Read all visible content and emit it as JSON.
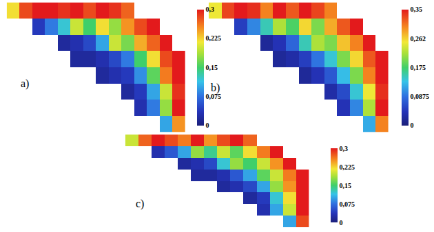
{
  "chart_data": [
    {
      "type": "heatmap",
      "title": "a)",
      "tick_labels": false,
      "colorbar_range": [
        0,
        0.3
      ],
      "colorbar_ticks": [
        0,
        {
          "value": 0.075,
          "label": "0,075"
        },
        {
          "value": 0.15,
          "label": "0,15"
        },
        {
          "value": 0.225,
          "label": "0,225"
        },
        {
          "value": 0.3,
          "label": "0,3"
        }
      ],
      "cells": [
        [
          0.22,
          0.28,
          0.3,
          0.3,
          0.29,
          0.3,
          0.28,
          0.3,
          0.29,
          0.27,
          null,
          null,
          null,
          null
        ],
        [
          null,
          null,
          0.04,
          0.08,
          0.12,
          0.2,
          0.15,
          0.22,
          0.18,
          0.25,
          0.28,
          0.3,
          null,
          null
        ],
        [
          null,
          null,
          null,
          null,
          0.02,
          0.03,
          0.05,
          0.1,
          0.2,
          0.17,
          0.24,
          0.27,
          0.3,
          null
        ],
        [
          null,
          null,
          null,
          null,
          null,
          0.02,
          0.02,
          0.03,
          0.05,
          0.08,
          0.15,
          0.22,
          0.28,
          0.3
        ],
        [
          null,
          null,
          null,
          null,
          null,
          null,
          null,
          0.02,
          0.03,
          0.04,
          0.09,
          0.16,
          0.26,
          0.3
        ],
        [
          null,
          null,
          null,
          null,
          null,
          null,
          null,
          null,
          null,
          0.02,
          0.04,
          0.1,
          0.2,
          0.29
        ],
        [
          null,
          null,
          null,
          null,
          null,
          null,
          null,
          null,
          null,
          null,
          0.03,
          0.08,
          0.18,
          0.3
        ],
        [
          null,
          null,
          null,
          null,
          null,
          null,
          null,
          null,
          null,
          null,
          null,
          null,
          0.1,
          0.25
        ]
      ]
    },
    {
      "type": "heatmap",
      "title": "b)",
      "tick_labels": false,
      "colorbar_range": [
        0,
        0.35
      ],
      "colorbar_ticks": [
        0,
        {
          "value": 0.0875,
          "label": "0,0875"
        },
        {
          "value": 0.175,
          "label": "0,175"
        },
        {
          "value": 0.262,
          "label": "0,262"
        },
        {
          "value": 0.35,
          "label": "0,35"
        }
      ],
      "cells": [
        [
          0.25,
          0.33,
          0.35,
          0.34,
          0.3,
          0.35,
          0.32,
          0.35,
          0.33,
          0.3,
          null,
          null,
          null,
          null
        ],
        [
          null,
          null,
          0.05,
          0.1,
          0.15,
          0.22,
          0.18,
          0.26,
          0.2,
          0.28,
          0.32,
          0.35,
          null,
          null
        ],
        [
          null,
          null,
          null,
          null,
          0.02,
          0.04,
          0.08,
          0.15,
          0.22,
          0.2,
          0.27,
          0.3,
          0.35,
          null
        ],
        [
          null,
          null,
          null,
          null,
          null,
          0.02,
          0.03,
          0.05,
          0.09,
          0.14,
          0.2,
          0.26,
          0.32,
          0.35
        ],
        [
          null,
          null,
          null,
          null,
          null,
          null,
          null,
          0.02,
          0.04,
          0.07,
          0.13,
          0.2,
          0.3,
          0.35
        ],
        [
          null,
          null,
          null,
          null,
          null,
          null,
          null,
          null,
          null,
          0.03,
          0.06,
          0.14,
          0.25,
          0.34
        ],
        [
          null,
          null,
          null,
          null,
          null,
          null,
          null,
          null,
          null,
          null,
          0.04,
          0.1,
          0.22,
          0.35
        ],
        [
          null,
          null,
          null,
          null,
          null,
          null,
          null,
          null,
          null,
          null,
          null,
          null,
          0.12,
          0.3
        ]
      ]
    },
    {
      "type": "heatmap",
      "title": "c)",
      "tick_labels": false,
      "colorbar_range": [
        0,
        0.3
      ],
      "colorbar_ticks": [
        0,
        {
          "value": 0.075,
          "label": "0,075"
        },
        {
          "value": 0.15,
          "label": "0,15"
        },
        {
          "value": 0.225,
          "label": "0,225"
        },
        {
          "value": 0.3,
          "label": "0,3"
        }
      ],
      "cells": [
        [
          0.2,
          0.27,
          0.3,
          0.28,
          0.26,
          0.3,
          0.25,
          0.28,
          0.3,
          0.27,
          null,
          null,
          null,
          null
        ],
        [
          null,
          null,
          0.03,
          0.06,
          0.1,
          0.18,
          0.14,
          0.2,
          0.16,
          0.22,
          0.26,
          0.3,
          null,
          null
        ],
        [
          null,
          null,
          null,
          null,
          0.02,
          0.03,
          0.05,
          0.12,
          0.18,
          0.15,
          0.2,
          0.25,
          0.3,
          null
        ],
        [
          null,
          null,
          null,
          null,
          null,
          0.02,
          0.02,
          0.03,
          0.06,
          0.1,
          0.16,
          0.2,
          0.26,
          0.3
        ],
        [
          null,
          null,
          null,
          null,
          null,
          null,
          null,
          0.02,
          0.03,
          0.05,
          0.1,
          0.18,
          0.25,
          0.3
        ],
        [
          null,
          null,
          null,
          null,
          null,
          null,
          null,
          null,
          null,
          0.02,
          0.04,
          0.12,
          0.22,
          0.3
        ],
        [
          null,
          null,
          null,
          null,
          null,
          null,
          null,
          null,
          null,
          null,
          0.03,
          0.1,
          0.2,
          0.3
        ],
        [
          null,
          null,
          null,
          null,
          null,
          null,
          null,
          null,
          null,
          null,
          null,
          null,
          0.1,
          0.28
        ]
      ]
    }
  ]
}
